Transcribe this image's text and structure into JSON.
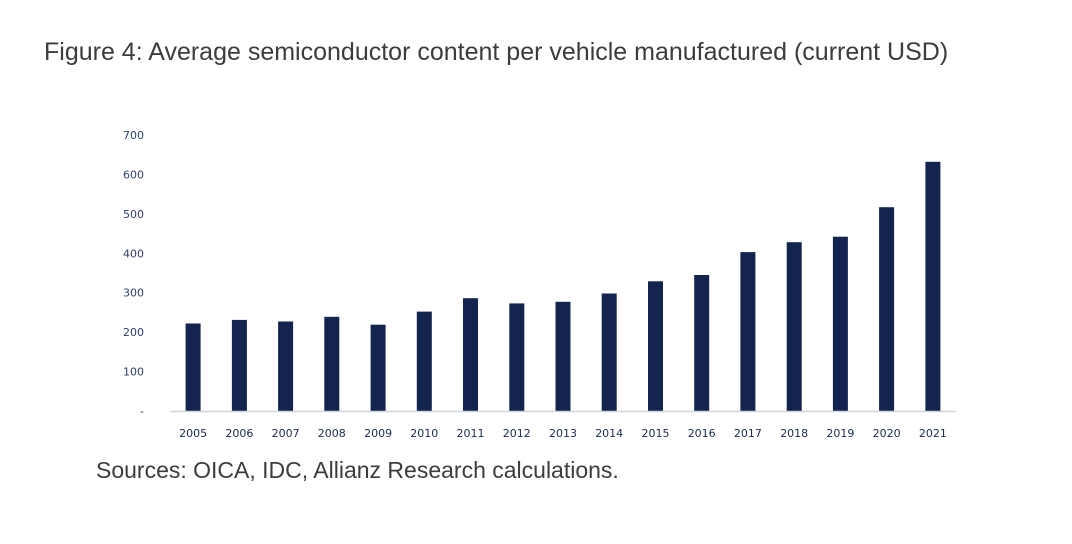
{
  "figure": {
    "title": "Figure 4: Average semiconductor content per vehicle manufactured (current USD)",
    "source": "Sources: OICA, IDC, Allianz Research calculations."
  },
  "colors": {
    "bar": "#13254f",
    "axis_line": "#d0d4dc",
    "text": "#3c3c3c"
  },
  "chart_data": {
    "type": "bar",
    "title": "Figure 4: Average semiconductor content per vehicle manufactured (current USD)",
    "xlabel": "",
    "ylabel": "",
    "ylim": [
      0,
      700
    ],
    "yticks": [
      0,
      100,
      200,
      300,
      400,
      500,
      600,
      700
    ],
    "ytick_labels": [
      "-",
      "100",
      "200",
      "300",
      "400",
      "500",
      "600",
      "700"
    ],
    "grid": false,
    "legend": "none",
    "categories": [
      "2005",
      "2006",
      "2007",
      "2008",
      "2009",
      "2010",
      "2011",
      "2012",
      "2013",
      "2014",
      "2015",
      "2016",
      "2017",
      "2018",
      "2019",
      "2020",
      "2021"
    ],
    "values": [
      222,
      231,
      227,
      239,
      219,
      252,
      286,
      273,
      277,
      298,
      329,
      345,
      403,
      428,
      442,
      517,
      632
    ]
  }
}
